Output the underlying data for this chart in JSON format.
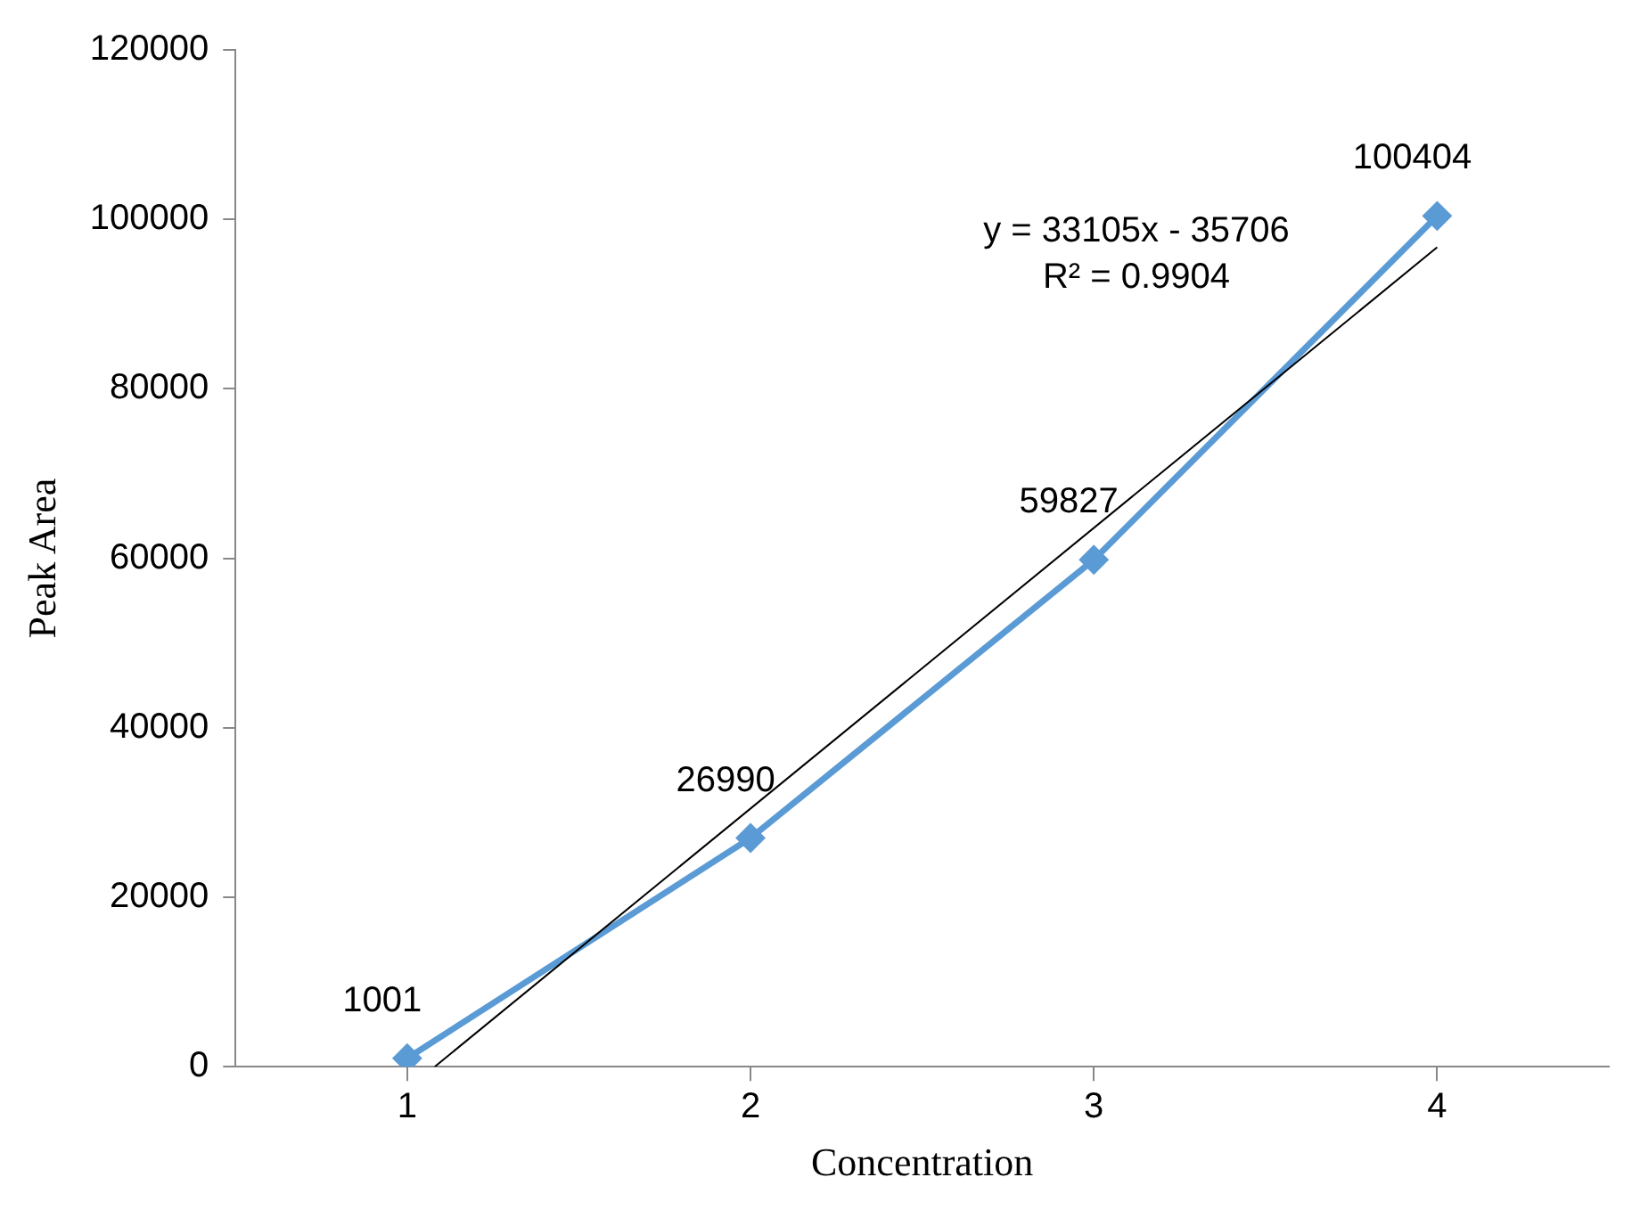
{
  "chart_data": {
    "type": "line",
    "xlabel": "Concentration",
    "ylabel": "Peak Area",
    "x": [
      1,
      2,
      3,
      4
    ],
    "xlim": [
      0.5,
      4.5
    ],
    "xticks": [
      1,
      2,
      3,
      4
    ],
    "ylim": [
      0,
      120000
    ],
    "yticks": [
      0,
      20000,
      40000,
      60000,
      80000,
      100000,
      120000
    ],
    "grid": false,
    "legend": false,
    "marker": "diamond",
    "series": [
      {
        "color": "#5b9bd5",
        "values": [
          1001,
          26990,
          59827,
          100404
        ],
        "value_labels": [
          "1001",
          "26990",
          "59827",
          "100404"
        ]
      },
      {
        "type": "line",
        "color": "#000000",
        "marker": "none",
        "x": [
          1.08,
          4
        ],
        "values": [
          0,
          96700
        ]
      }
    ],
    "annotations": [
      "y = 33105x - 35706",
      "R² = 0.9904"
    ]
  }
}
